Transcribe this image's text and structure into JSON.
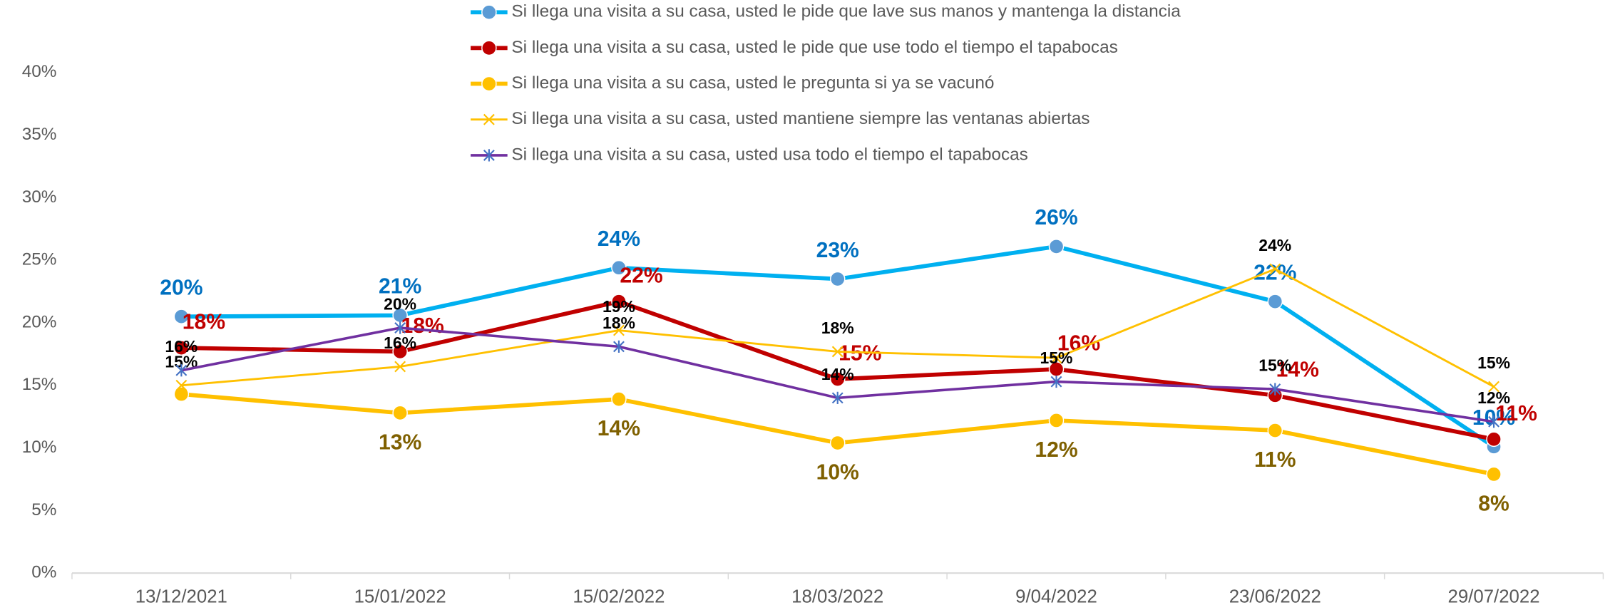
{
  "chart_data": {
    "type": "line",
    "categories": [
      "13/12/2021",
      "15/01/2022",
      "15/02/2022",
      "18/03/2022",
      "9/04/2022",
      "23/06/2022",
      "29/07/2022"
    ],
    "ylim": [
      0,
      40
    ],
    "yticks": [
      {
        "value": 0,
        "label": "0%"
      },
      {
        "value": 5,
        "label": "5%"
      },
      {
        "value": 10,
        "label": "10%"
      },
      {
        "value": 15,
        "label": "15%"
      },
      {
        "value": 20,
        "label": "20%"
      },
      {
        "value": 25,
        "label": "25%"
      },
      {
        "value": 30,
        "label": "30%"
      },
      {
        "value": 35,
        "label": "35%"
      },
      {
        "value": 40,
        "label": "40%"
      }
    ],
    "legend": "top",
    "series": [
      {
        "name": "Si llega una visita a su casa, usted le pide que lave sus manos y mantenga la distancia",
        "color": "#00b0f0",
        "marker": "circle",
        "marker_color": "#5b9bd5",
        "label_color": "#0070c0",
        "width": 4,
        "values": [
          20.5,
          20.6,
          24.4,
          23.5,
          26.1,
          21.7,
          10.1
        ],
        "value_labels": [
          "20%",
          "21%",
          "24%",
          "23%",
          "26%",
          "22%",
          "10%"
        ]
      },
      {
        "name": "Si llega una visita a su casa, usted le pide que use todo el tiempo el tapabocas",
        "color": "#c00000",
        "marker": "circle",
        "marker_color": "#c00000",
        "label_color": "#c00000",
        "width": 4,
        "values": [
          18.0,
          17.7,
          21.7,
          15.5,
          16.3,
          14.2,
          10.7
        ],
        "value_labels": [
          "18%",
          "18%",
          "22%",
          "15%",
          "16%",
          "14%",
          "11%"
        ]
      },
      {
        "name": "Si llega una visita a su casa, usted le pregunta si ya se vacunó",
        "color": "#ffc000",
        "marker": "circle",
        "marker_color": "#ffc000",
        "label_color": "#7f6000",
        "width": 4,
        "values": [
          14.3,
          12.8,
          13.9,
          10.4,
          12.2,
          11.4,
          7.9
        ],
        "value_labels": [
          null,
          "13%",
          "14%",
          "10%",
          "12%",
          "11%",
          "8%"
        ]
      },
      {
        "name": "Si llega una visita a su casa, usted mantiene siempre las ventanas abiertas",
        "color": "#ffc000",
        "marker": "x",
        "marker_color": "#ffc000",
        "label_color": "#000000",
        "width": 2,
        "values": [
          15.0,
          16.5,
          19.4,
          17.7,
          17.2,
          24.3,
          14.9
        ],
        "value_labels": [
          "15%",
          "16%",
          "19%",
          "18%",
          null,
          "24%",
          "15%"
        ]
      },
      {
        "name": "Si llega una visita a su casa, usted usa todo el tiempo el tapabocas",
        "color": "#7030a0",
        "marker": "star",
        "marker_color": "#4472c4",
        "label_color": "#000000",
        "width": 2.5,
        "values": [
          16.2,
          19.6,
          18.1,
          14.0,
          15.3,
          14.7,
          12.1
        ],
        "value_labels": [
          "16%",
          "20%",
          "18%",
          "14%",
          "15%",
          "15%",
          "12%"
        ]
      }
    ]
  }
}
